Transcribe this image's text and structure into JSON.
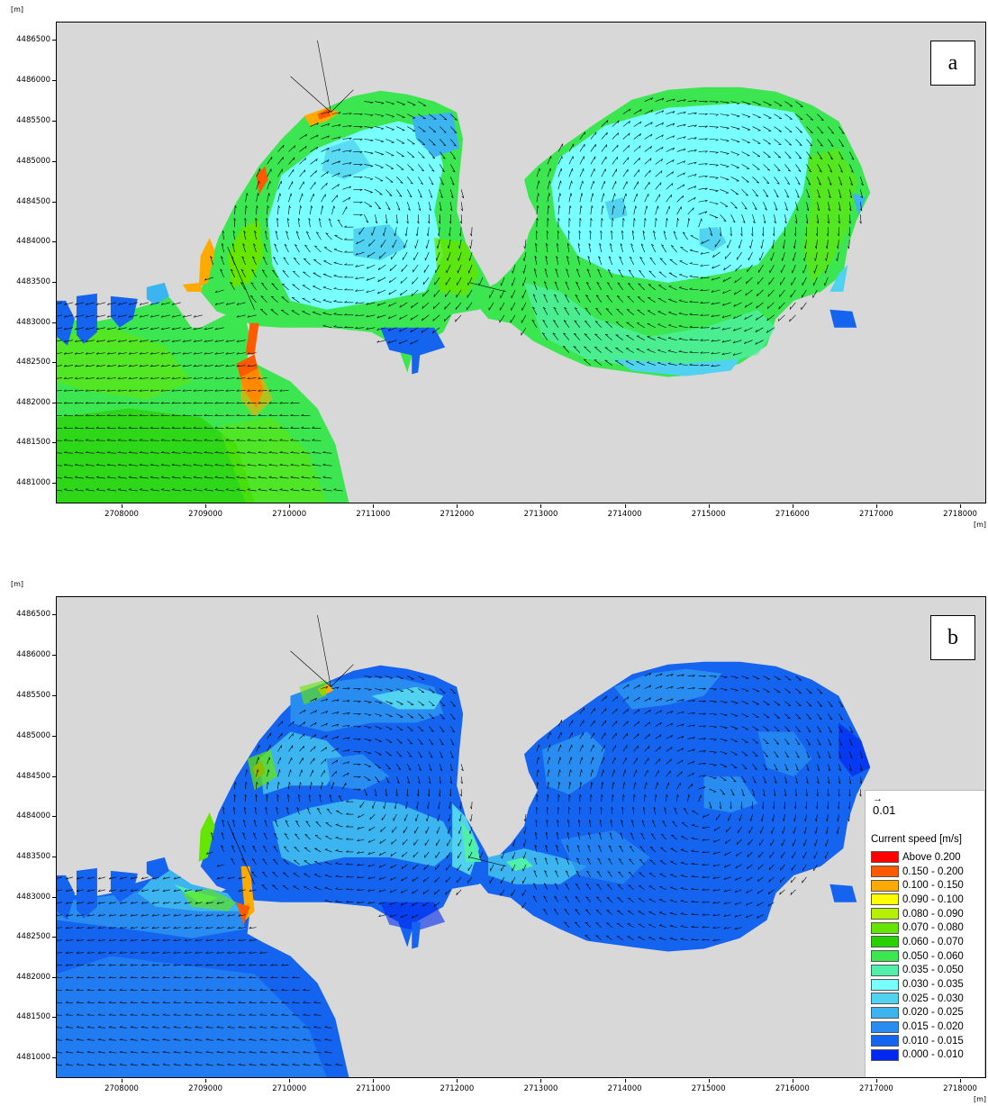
{
  "axis_unit": "[m]",
  "y_ticks": [
    "4486500",
    "4486000",
    "4485500",
    "4485000",
    "4484500",
    "4484000",
    "4483500",
    "4483000",
    "4482500",
    "4482000",
    "4481500",
    "4481000"
  ],
  "x_ticks": [
    "2708000",
    "2709000",
    "2710000",
    "2711000",
    "2712000",
    "2713000",
    "2714000",
    "2715000",
    "2716000",
    "2717000",
    "2718000"
  ],
  "panels": {
    "a": {
      "label": "a"
    },
    "b": {
      "label": "b"
    }
  },
  "legend": {
    "scale_arrow": "→",
    "scale_value": "0.01",
    "title": "Current speed [m/s]",
    "items": [
      {
        "label": "Above 0.200",
        "color": "#ff0000"
      },
      {
        "label": "0.150 - 0.200",
        "color": "#ff5a00"
      },
      {
        "label": "0.100 - 0.150",
        "color": "#ffaa00"
      },
      {
        "label": "0.090 - 0.100",
        "color": "#ffff00"
      },
      {
        "label": "0.080 - 0.090",
        "color": "#b4f000"
      },
      {
        "label": "0.070 - 0.080",
        "color": "#64e600"
      },
      {
        "label": "0.060 - 0.070",
        "color": "#28d200"
      },
      {
        "label": "0.050 - 0.060",
        "color": "#3ce650"
      },
      {
        "label": "0.035 - 0.050",
        "color": "#50f0aa"
      },
      {
        "label": "0.030 - 0.035",
        "color": "#78ffff"
      },
      {
        "label": "0.025 - 0.030",
        "color": "#50d2f0"
      },
      {
        "label": "0.020 - 0.025",
        "color": "#3cb4f0"
      },
      {
        "label": "0.015 - 0.020",
        "color": "#288cf0"
      },
      {
        "label": "0.010 - 0.015",
        "color": "#1464f0"
      },
      {
        "label": "0.000 - 0.010",
        "color": "#0028f0"
      }
    ]
  },
  "colors": {
    "land": "#d8d8d8",
    "panel_a_base": "#3ce650",
    "panel_a_inner": "#78ffff",
    "panel_b_base": "#1464f0",
    "panel_b_inner": "#288cf0",
    "hotspot": "#ff5a00"
  }
}
